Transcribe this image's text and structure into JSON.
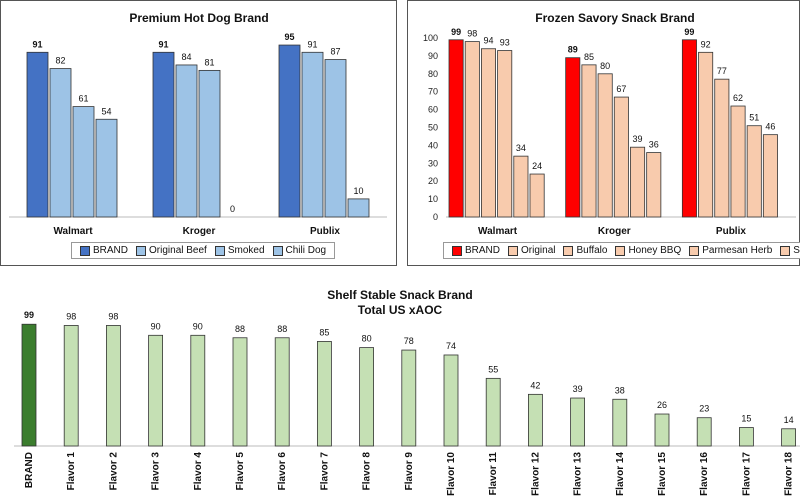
{
  "chart_data": [
    {
      "type": "bar",
      "title": "Premium Hot Dog Brand",
      "categories": [
        "Walmart",
        "Kroger",
        "Publix"
      ],
      "series": [
        {
          "name": "BRAND",
          "color": "#4472c4",
          "values": [
            91,
            91,
            95
          ]
        },
        {
          "name": "Original Beef",
          "color": "#9dc3e6",
          "values": [
            82,
            84,
            91
          ]
        },
        {
          "name": "Smoked",
          "color": "#9dc3e6",
          "values": [
            61,
            81,
            87
          ]
        },
        {
          "name": "Chili Dog",
          "color": "#9dc3e6",
          "values": [
            54,
            0,
            10
          ]
        }
      ],
      "ylim": [
        0,
        100
      ],
      "grid": false,
      "legend": "bottom"
    },
    {
      "type": "bar",
      "title": "Frozen Savory Snack Brand",
      "categories": [
        "Walmart",
        "Kroger",
        "Publix"
      ],
      "series": [
        {
          "name": "BRAND",
          "color": "#ff0000",
          "values": [
            99,
            89,
            99
          ]
        },
        {
          "name": "Original",
          "color": "#f8cbad",
          "values": [
            98,
            85,
            92
          ]
        },
        {
          "name": "Buffalo",
          "color": "#f8cbad",
          "values": [
            94,
            80,
            77
          ]
        },
        {
          "name": "Honey BBQ",
          "color": "#f8cbad",
          "values": [
            93,
            67,
            62
          ]
        },
        {
          "name": "Parmesan Herb",
          "color": "#f8cbad",
          "values": [
            34,
            39,
            51
          ]
        },
        {
          "name": "Sriracha",
          "color": "#f8cbad",
          "values": [
            24,
            36,
            46
          ]
        }
      ],
      "yticks": [
        "0",
        "10",
        "20",
        "30",
        "40",
        "50",
        "60",
        "70",
        "80",
        "90",
        "100"
      ],
      "ylim": [
        0,
        100
      ],
      "grid": false,
      "legend": "bottom"
    },
    {
      "type": "bar",
      "title": "Shelf Stable Snack Brand",
      "subtitle": "Total US xAOC",
      "categories": [
        "BRAND",
        "Flavor 1",
        "Flavor 2",
        "Flavor 3",
        "Flavor 4",
        "Flavor 5",
        "Flavor 6",
        "Flavor 7",
        "Flavor 8",
        "Flavor 9",
        "Flavor 10",
        "Flavor 11",
        "Flavor 12",
        "Flavor 13",
        "Flavor 14",
        "Flavor 15",
        "Flavor 16",
        "Flavor 17",
        "Flavor 18"
      ],
      "values": [
        99,
        98,
        98,
        90,
        90,
        88,
        88,
        85,
        80,
        78,
        74,
        55,
        42,
        39,
        38,
        26,
        23,
        15,
        14
      ],
      "colors": {
        "brand": "#3b7d2e",
        "flavor": "#c5e0b4"
      },
      "ylim": [
        0,
        100
      ],
      "grid": false
    }
  ]
}
